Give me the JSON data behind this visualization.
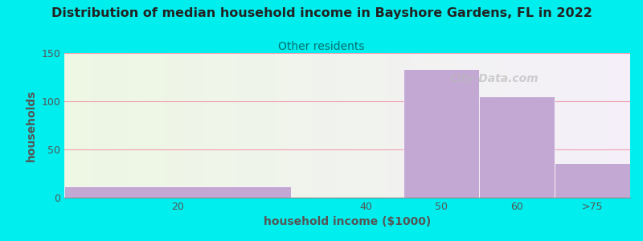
{
  "title": "Distribution of median household income in Bayshore Gardens, FL in 2022",
  "subtitle": "Other residents",
  "xlabel": "household income ($1000)",
  "ylabel": "households",
  "bar_color": "#c4a8d4",
  "ylim": [
    0,
    150
  ],
  "yticks": [
    0,
    50,
    100,
    150
  ],
  "background_outer": "#00eeee",
  "grid_color": "#f0a0b0",
  "title_color": "#222222",
  "subtitle_color": "#007070",
  "axis_label_color": "#555555",
  "tick_color": "#555555",
  "watermark_text": "City-Data.com",
  "watermark_color": "#b8b8b8",
  "bin_edges": [
    0,
    30,
    45,
    55,
    65,
    75
  ],
  "values": [
    12,
    0,
    133,
    105,
    36
  ],
  "tick_positions": [
    15,
    40,
    50,
    60,
    70
  ],
  "tick_labels": [
    "20",
    "40",
    "50",
    "60",
    ">75"
  ],
  "left_bg_color": "#edf7e4",
  "right_bg_color": "#f5f2f8"
}
